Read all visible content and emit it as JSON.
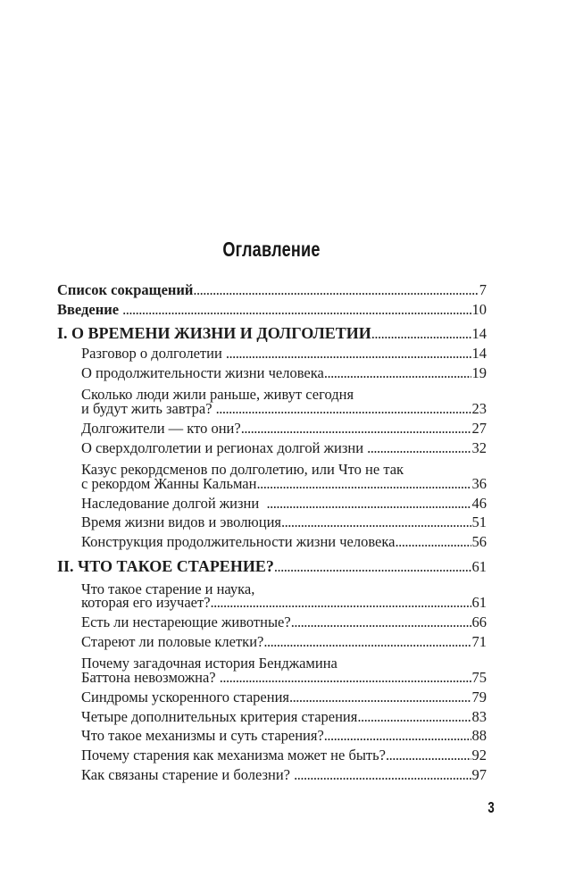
{
  "page": {
    "title": "Оглавление",
    "folio": "3"
  },
  "toc": {
    "entries": [
      {
        "text": "Список сокращений",
        "page": "7"
      },
      {
        "text": "Введение ",
        "page": "10"
      },
      {
        "text": "I. О ВРЕМЕНИ ЖИЗНИ И ДОЛГОЛЕТИИ",
        "page": "14"
      },
      {
        "text": "Разговор о долголетии ",
        "page": "14"
      },
      {
        "text": "О продолжительности жизни человека",
        "page": "19"
      },
      {
        "lines": [
          "Сколько люди жили раньше, живут сегодня",
          "и будут жить завтра? "
        ],
        "page": "23"
      },
      {
        "text": "Долгожители — кто они?",
        "page": "27"
      },
      {
        "text": "О сверхдолголетии и регионах долгой жизни ",
        "page": "32"
      },
      {
        "lines": [
          "Казус рекордсменов по долголетию, или Что не так",
          "с рекордом Жанны Кальман"
        ],
        "page": "36"
      },
      {
        "text": "Наследование долгой жизни  ",
        "page": "46"
      },
      {
        "text": "Время жизни видов и эволюция",
        "page": "51"
      },
      {
        "text": "Конструкция продолжительности жизни человека",
        "page": "56"
      },
      {
        "text": "II. ЧТО ТАКОЕ СТАРЕНИЕ?",
        "page": "61"
      },
      {
        "lines": [
          "Что такое старение и наука,",
          "которая его изучает?"
        ],
        "page": "61"
      },
      {
        "text": "Есть ли нестареющие животные?",
        "page": "66"
      },
      {
        "text": "Стареют ли половые клетки?",
        "page": "71"
      },
      {
        "lines": [
          "Почему загадочная история Бенджамина",
          "Баттона невозможна? "
        ],
        "page": "75"
      },
      {
        "text": "Синдромы ускоренного старения",
        "page": "79"
      },
      {
        "text": "Четыре дополнительных критерия старения",
        "page": "83"
      },
      {
        "text": "Что такое механизмы и суть старения?",
        "page": "88"
      },
      {
        "text": "Почему старения как механизма может не быть?",
        "page": "92"
      },
      {
        "text": "Как связаны старение и болезни? ",
        "page": "97"
      }
    ]
  }
}
